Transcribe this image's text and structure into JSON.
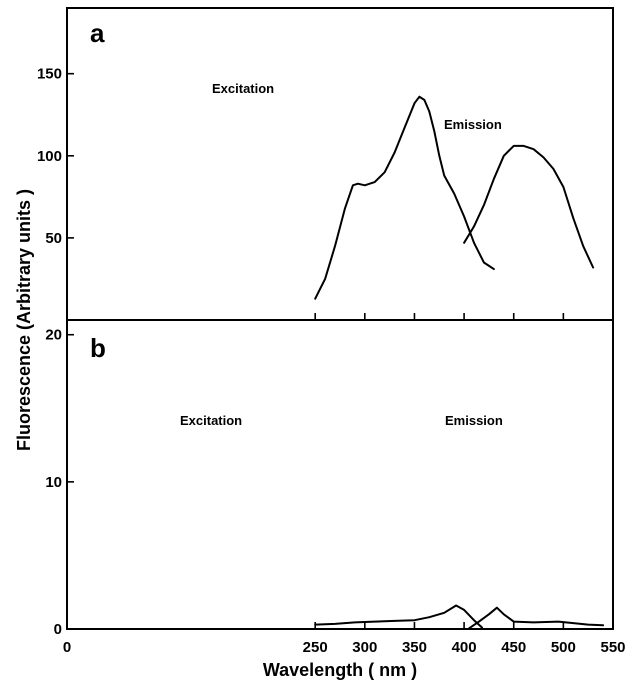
{
  "chart_data": [
    {
      "type": "line",
      "panel_label": "a",
      "xlim": [
        0,
        550
      ],
      "ylim": [
        0,
        190
      ],
      "yticks": [
        50,
        100,
        150
      ],
      "series": [
        {
          "name": "Excitation",
          "points": [
            [
              250,
              13
            ],
            [
              260,
              25
            ],
            [
              270,
              45
            ],
            [
              280,
              68
            ],
            [
              288,
              82
            ],
            [
              293,
              83
            ],
            [
              300,
              82
            ],
            [
              310,
              84
            ],
            [
              320,
              90
            ],
            [
              330,
              102
            ],
            [
              340,
              117
            ],
            [
              350,
              132
            ],
            [
              355,
              136
            ],
            [
              360,
              134
            ],
            [
              365,
              127
            ],
            [
              370,
              115
            ],
            [
              375,
              100
            ],
            [
              380,
              88
            ],
            [
              390,
              77
            ],
            [
              400,
              63
            ],
            [
              410,
              47
            ],
            [
              420,
              35
            ],
            [
              430,
              31
            ]
          ]
        },
        {
          "name": "Emission",
          "points": [
            [
              400,
              47
            ],
            [
              410,
              57
            ],
            [
              420,
              70
            ],
            [
              430,
              86
            ],
            [
              440,
              100
            ],
            [
              450,
              106
            ],
            [
              460,
              106
            ],
            [
              470,
              104
            ],
            [
              480,
              99
            ],
            [
              490,
              92
            ],
            [
              500,
              81
            ],
            [
              510,
              62
            ],
            [
              520,
              45
            ],
            [
              530,
              32
            ]
          ]
        }
      ]
    },
    {
      "type": "line",
      "panel_label": "b",
      "xlim": [
        0,
        550
      ],
      "ylim": [
        0,
        21
      ],
      "yticks": [
        0,
        10,
        20
      ],
      "series": [
        {
          "name": "Excitation",
          "points": [
            [
              250,
              0.3
            ],
            [
              270,
              0.35
            ],
            [
              290,
              0.45
            ],
            [
              310,
              0.5
            ],
            [
              330,
              0.55
            ],
            [
              350,
              0.6
            ],
            [
              365,
              0.8
            ],
            [
              380,
              1.1
            ],
            [
              392,
              1.6
            ],
            [
              400,
              1.3
            ],
            [
              410,
              0.6
            ],
            [
              418,
              0.1
            ]
          ]
        },
        {
          "name": "Emission",
          "points": [
            [
              405,
              0.05
            ],
            [
              415,
              0.5
            ],
            [
              425,
              1.0
            ],
            [
              433,
              1.45
            ],
            [
              440,
              1.0
            ],
            [
              450,
              0.5
            ],
            [
              470,
              0.45
            ],
            [
              495,
              0.5
            ],
            [
              510,
              0.4
            ],
            [
              525,
              0.3
            ],
            [
              540,
              0.25
            ]
          ]
        }
      ]
    }
  ],
  "shared_x_axis": {
    "title": "Wavelength  ( nm )",
    "ticks": [
      0,
      250,
      300,
      350,
      400,
      450,
      500,
      550
    ]
  },
  "shared_y_axis": {
    "title": "Fluorescence  (Arbitrary  units )"
  },
  "annotations": {
    "a_excitation": "Excitation",
    "a_emission": "Emission",
    "b_excitation": "Excitation",
    "b_emission": "Emission"
  }
}
